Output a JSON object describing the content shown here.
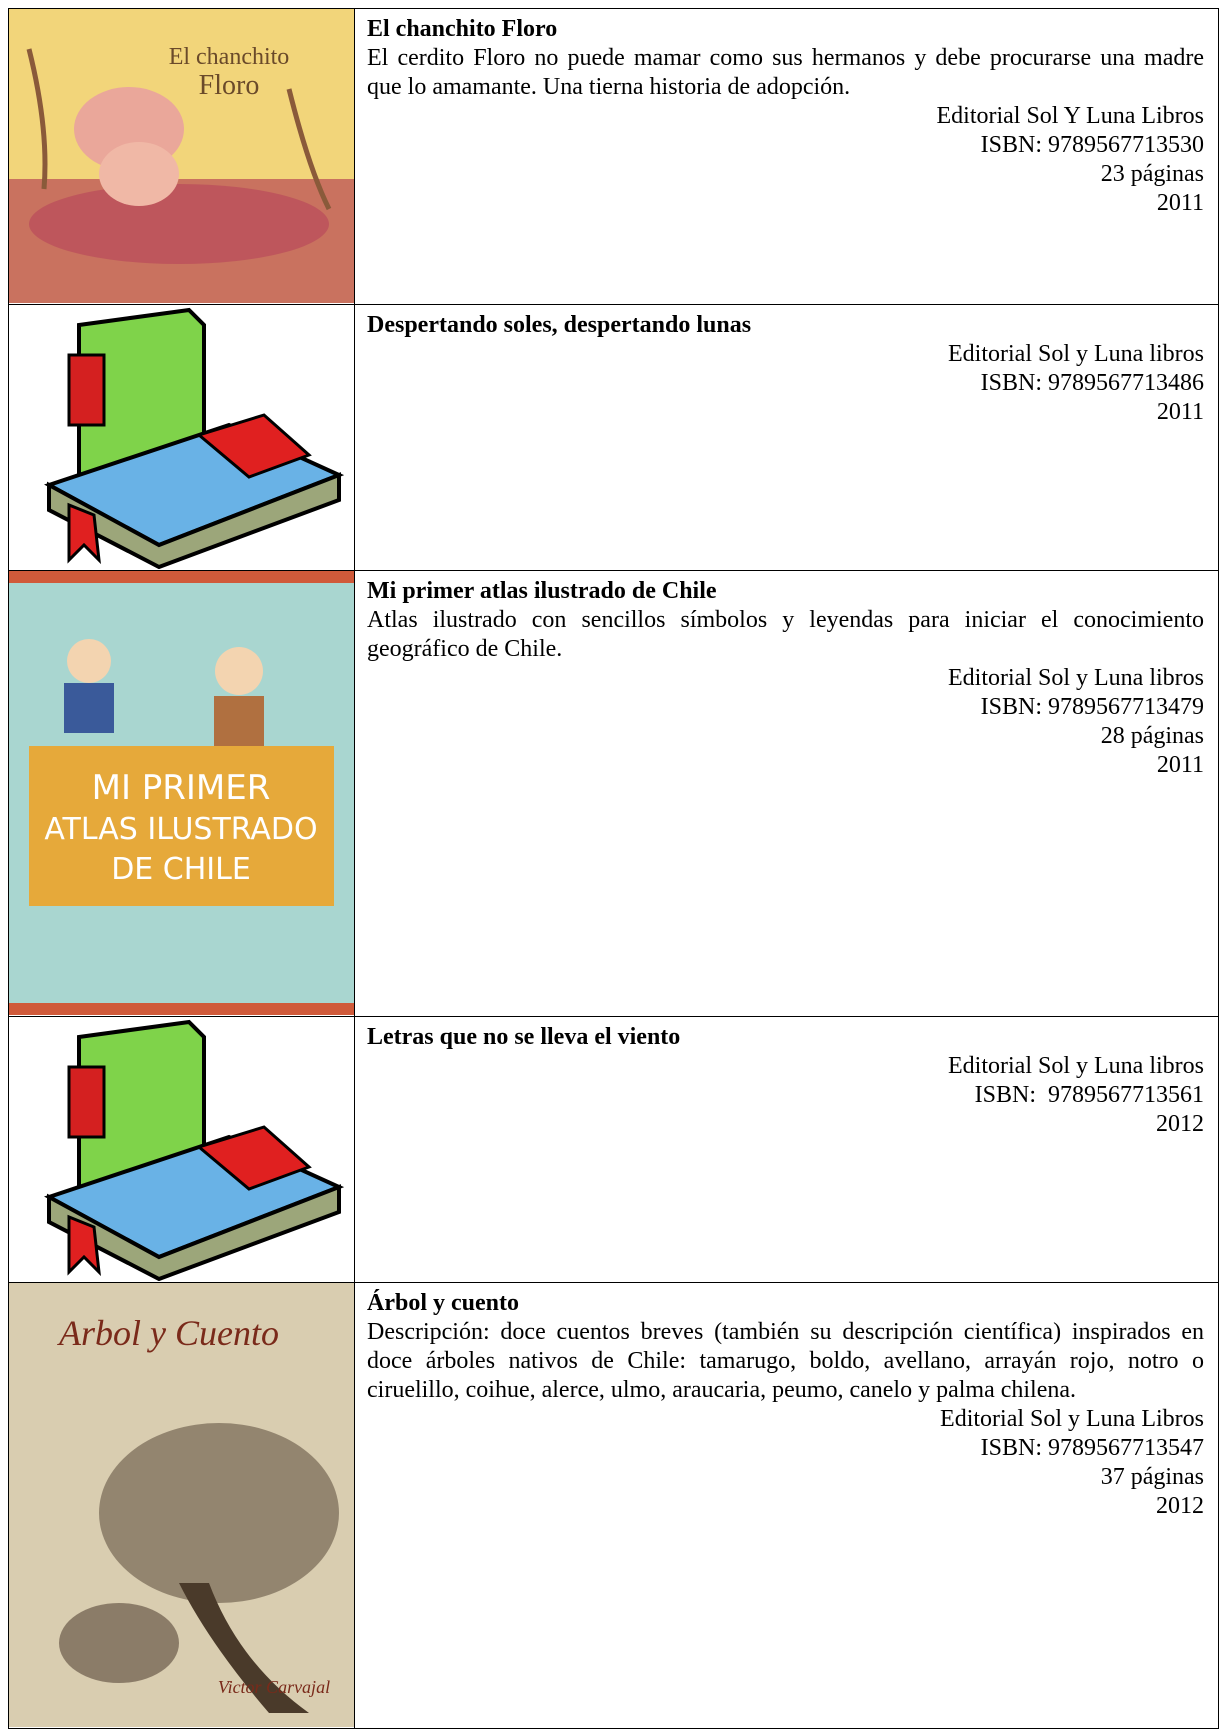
{
  "table": {
    "rows": [
      {
        "cover_text": [
          "El chanchito",
          "Floro"
        ],
        "title": "El chanchito Floro",
        "description": "El cerdito Floro no puede mamar como sus hermanos y debe procurarse una madre que lo amamante. Una tierna historia de adopción.",
        "details": [
          "Editorial Sol Y Luna Libros",
          "ISBN: 9789567713530",
          "23 páginas",
          "2011"
        ]
      },
      {
        "title": "Despertando soles, despertando lunas",
        "details": [
          "Editorial Sol y Luna libros",
          "ISBN: 9789567713486",
          "2011"
        ]
      },
      {
        "cover_text": [
          "MI PRIMER",
          "ATLAS ILUSTRADO",
          "DE CHILE"
        ],
        "title": "Mi primer atlas ilustrado de Chile",
        "description": "Atlas ilustrado con sencillos símbolos y leyendas para iniciar el conocimiento geográfico de Chile.",
        "details": [
          "Editorial Sol y Luna libros",
          "ISBN: 9789567713479",
          "28 páginas",
          "2011"
        ]
      },
      {
        "title": "Letras que no se lleva el viento",
        "details": [
          "Editorial Sol y Luna libros",
          "ISBN:  9789567713561",
          "2012"
        ]
      },
      {
        "cover_text": [
          "Arbol y Cuento",
          "Victor Carvajal"
        ],
        "title": "Árbol y cuento",
        "description": "Descripción: doce cuentos breves (también su descripción científica) inspirados en doce árboles nativos de Chile: tamarugo, boldo, avellano, arrayán rojo, notro o ciruelillo, coihue, alerce, ulmo, araucaria, peumo, canelo y palma chilena.",
        "details": [
          "Editorial Sol y Luna Libros",
          "ISBN: 9789567713547",
          "37 páginas",
          "2012"
        ]
      }
    ]
  }
}
